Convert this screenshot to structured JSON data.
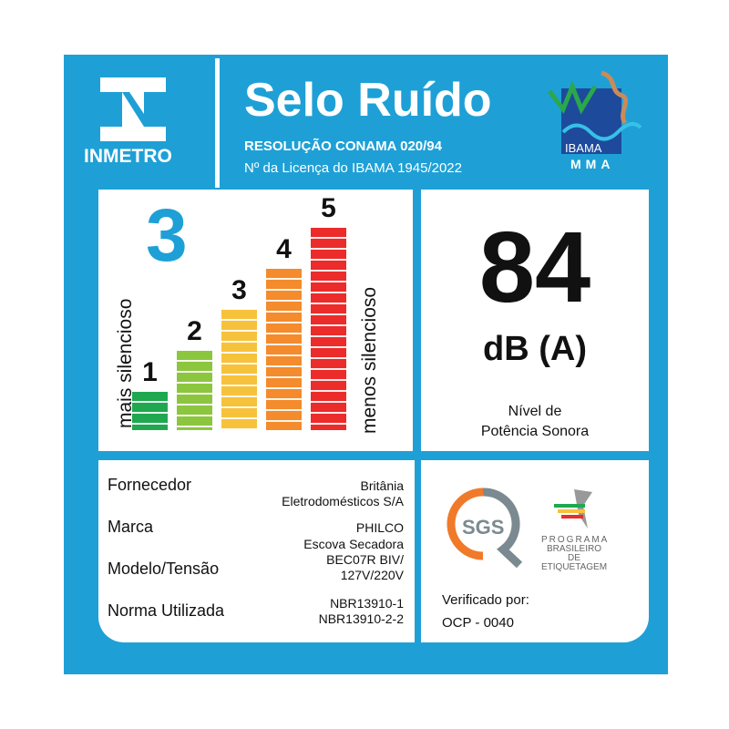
{
  "header": {
    "brand": "INMETRO",
    "title": "Selo Ruído",
    "resolution": "RESOLUÇÃO CONAMA 020/94",
    "license": "Nº da Licença do IBAMA 1945/2022",
    "ibama": "IBAMA",
    "mma": "MMA"
  },
  "scale": {
    "rating": "3",
    "left_label": "mais silencioso",
    "right_label": "menos silencioso",
    "bars": [
      {
        "label": "1",
        "level": 1,
        "color": "#1fa84f"
      },
      {
        "label": "2",
        "level": 2,
        "color": "#8cc63f"
      },
      {
        "label": "3",
        "level": 3,
        "color": "#f7c23b"
      },
      {
        "label": "4",
        "level": 4,
        "color": "#f48b2c"
      },
      {
        "label": "5",
        "level": 5,
        "color": "#ec2b2b"
      }
    ]
  },
  "sound": {
    "value": "84",
    "unit": "dB (A)",
    "desc1": "Nível de",
    "desc2": "Potência Sonora"
  },
  "info": {
    "rows": [
      {
        "label": "Fornecedor",
        "values": [
          "Britânia",
          "Eletrodomésticos S/A"
        ]
      },
      {
        "label": "Marca",
        "values": [
          "PHILCO"
        ]
      },
      {
        "label": "Modelo/Tensão",
        "values": [
          "Escova Secadora",
          "BEC07R BIV/",
          "127V/220V"
        ]
      },
      {
        "label": "Norma Utilizada",
        "values": [
          "NBR13910-1",
          "NBR13910-2-2"
        ]
      }
    ]
  },
  "cert": {
    "sgs": "SGS",
    "pbe1": "PROGRAMA",
    "pbe2": "BRASILEIRO DE",
    "pbe3": "ETIQUETAGEM",
    "verified": "Verificado por:",
    "ocp": "OCP - 0040"
  },
  "colors": {
    "frame": "#1ea0d6",
    "rating": "#1ea0d6"
  }
}
